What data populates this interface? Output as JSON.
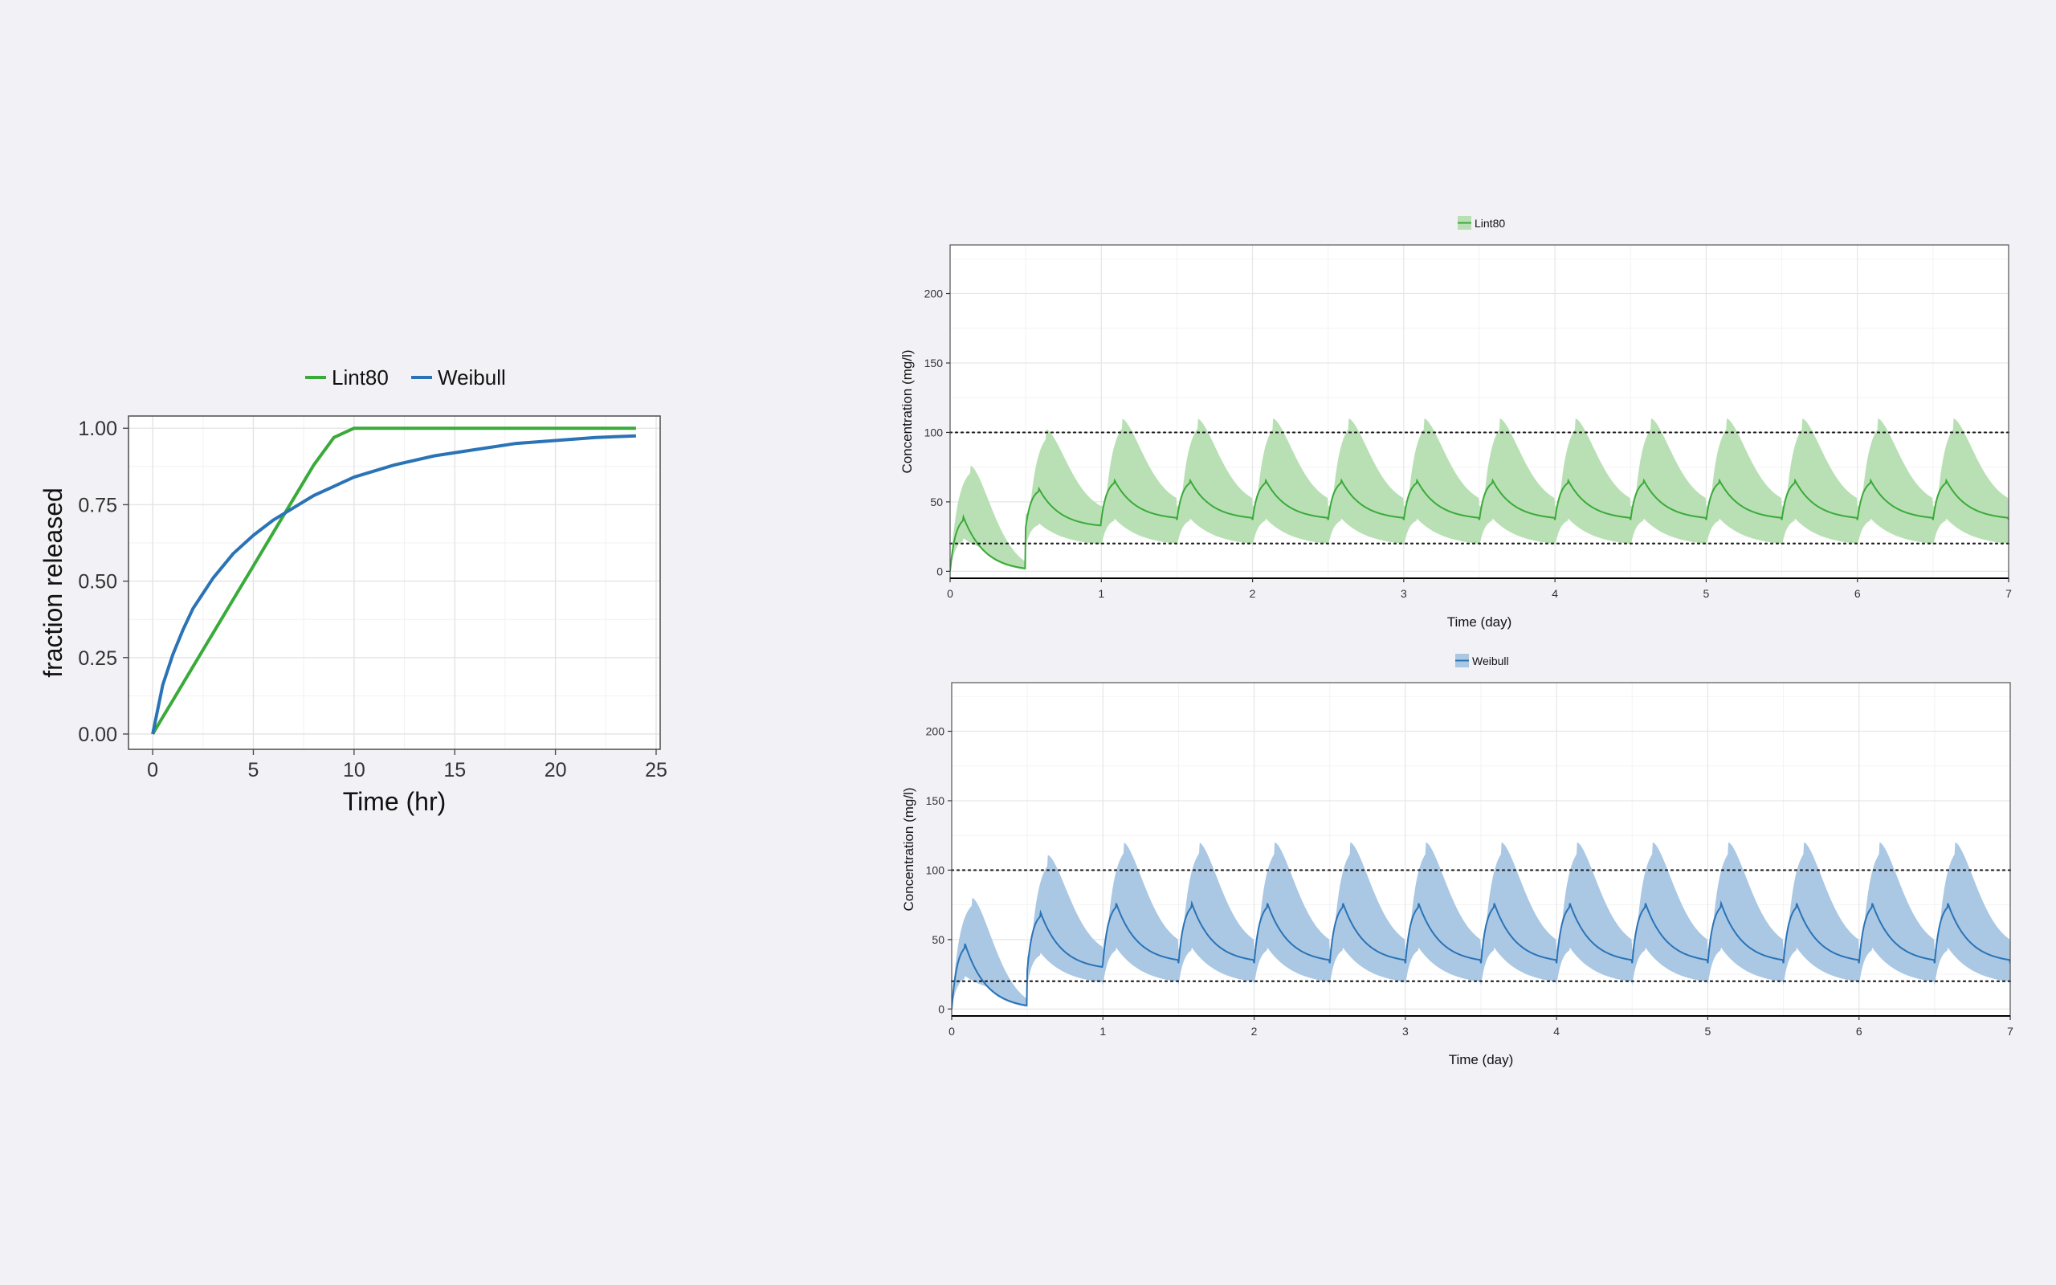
{
  "chart_data": [
    {
      "type": "line",
      "title": "",
      "xlabel": "Time (hr)",
      "ylabel": "fraction released",
      "xlim": [
        -1.2,
        25.2
      ],
      "ylim": [
        -0.05,
        1.04
      ],
      "xticks": [
        0,
        5,
        10,
        15,
        20,
        25
      ],
      "yticks": [
        0.0,
        0.25,
        0.5,
        0.75,
        1.0
      ],
      "ytick_labels": [
        "0.00",
        "0.25",
        "0.50",
        "0.75",
        "1.00"
      ],
      "grid": true,
      "legend_position": "top",
      "x": [
        0,
        0.5,
        1,
        1.5,
        2,
        3,
        4,
        5,
        6,
        7,
        8,
        9,
        10,
        12,
        14,
        16,
        18,
        20,
        22,
        24
      ],
      "series": [
        {
          "name": "Lint80",
          "color": "#3aaa3a",
          "values": [
            0,
            0.055,
            0.11,
            0.165,
            0.22,
            0.33,
            0.44,
            0.55,
            0.66,
            0.77,
            0.88,
            0.97,
            1.0,
            1.0,
            1.0,
            1.0,
            1.0,
            1.0,
            1.0,
            1.0
          ]
        },
        {
          "name": "Weibull",
          "color": "#2a73b6",
          "values": [
            0,
            0.16,
            0.26,
            0.34,
            0.41,
            0.51,
            0.59,
            0.65,
            0.7,
            0.74,
            0.78,
            0.81,
            0.84,
            0.88,
            0.91,
            0.93,
            0.95,
            0.96,
            0.97,
            0.975
          ]
        }
      ]
    },
    {
      "type": "area",
      "title": "",
      "xlabel": "Time (day)",
      "ylabel": "Concentration (mg/l)",
      "xlim": [
        0,
        7
      ],
      "ylim": [
        -5,
        235
      ],
      "xticks": [
        0,
        1,
        2,
        3,
        4,
        5,
        6,
        7
      ],
      "yticks": [
        0,
        50,
        100,
        150,
        200
      ],
      "grid": true,
      "legend_position": "top",
      "reference_lines": [
        100,
        20
      ],
      "series": [
        {
          "name": "Lint80",
          "color": "#3aaa3a",
          "fill": "#b9e0b4",
          "dosing_interval": 0.5,
          "median_first_peak": 40,
          "median_steady_peak": 66,
          "median_steady_trough": 37,
          "upper_first_peak": 76,
          "upper_steady_peak": 110,
          "lower_steady_trough": 18
        }
      ]
    },
    {
      "type": "area",
      "title": "",
      "xlabel": "Time (day)",
      "ylabel": "Concentration (mg/l)",
      "xlim": [
        0,
        7
      ],
      "ylim": [
        -5,
        235
      ],
      "xticks": [
        0,
        1,
        2,
        3,
        4,
        5,
        6,
        7
      ],
      "yticks": [
        0,
        50,
        100,
        150,
        200
      ],
      "grid": true,
      "legend_position": "top",
      "reference_lines": [
        100,
        20
      ],
      "series": [
        {
          "name": "Weibull",
          "color": "#2a73b6",
          "fill": "#aac8e4",
          "dosing_interval": 0.5,
          "median_first_peak": 48,
          "median_steady_peak": 77,
          "median_steady_trough": 33,
          "upper_first_peak": 80,
          "upper_steady_peak": 120,
          "lower_steady_trough": 17
        }
      ]
    }
  ]
}
